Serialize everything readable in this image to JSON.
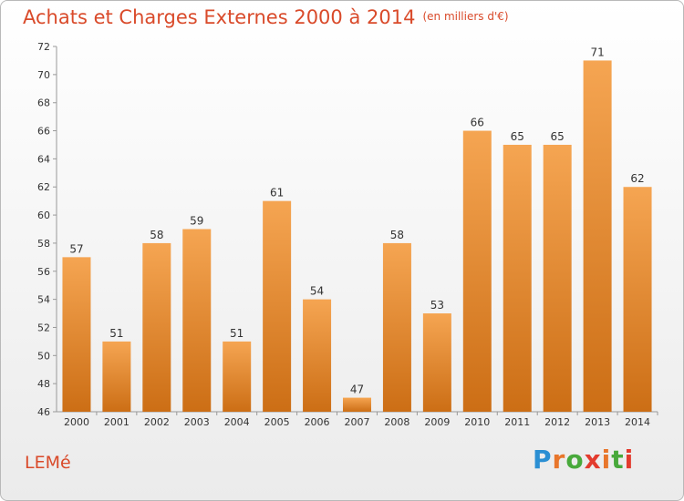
{
  "header": {
    "title": "Achats et Charges Externes 2000 à 2014",
    "unit": "(en milliers d'€)"
  },
  "footer": {
    "commune": "LEMé",
    "logo": "Proxiti"
  },
  "colors": {
    "title": "#d94a2a",
    "bar_top": "#f5a552",
    "bar_bottom": "#cc6e15"
  },
  "chart_data": {
    "type": "bar",
    "title": "Achats et Charges Externes 2000 à 2014",
    "subtitle": "(en milliers d'€)",
    "categories": [
      "2000",
      "2001",
      "2002",
      "2003",
      "2004",
      "2005",
      "2006",
      "2007",
      "2008",
      "2009",
      "2010",
      "2011",
      "2012",
      "2013",
      "2014"
    ],
    "values": [
      57,
      51,
      58,
      59,
      51,
      61,
      54,
      47,
      58,
      53,
      66,
      65,
      65,
      71,
      62
    ],
    "ylim": [
      46,
      72
    ],
    "yticks": [
      46,
      48,
      50,
      52,
      54,
      56,
      58,
      60,
      62,
      64,
      66,
      68,
      70,
      72
    ],
    "grid": false,
    "legend": "none"
  }
}
